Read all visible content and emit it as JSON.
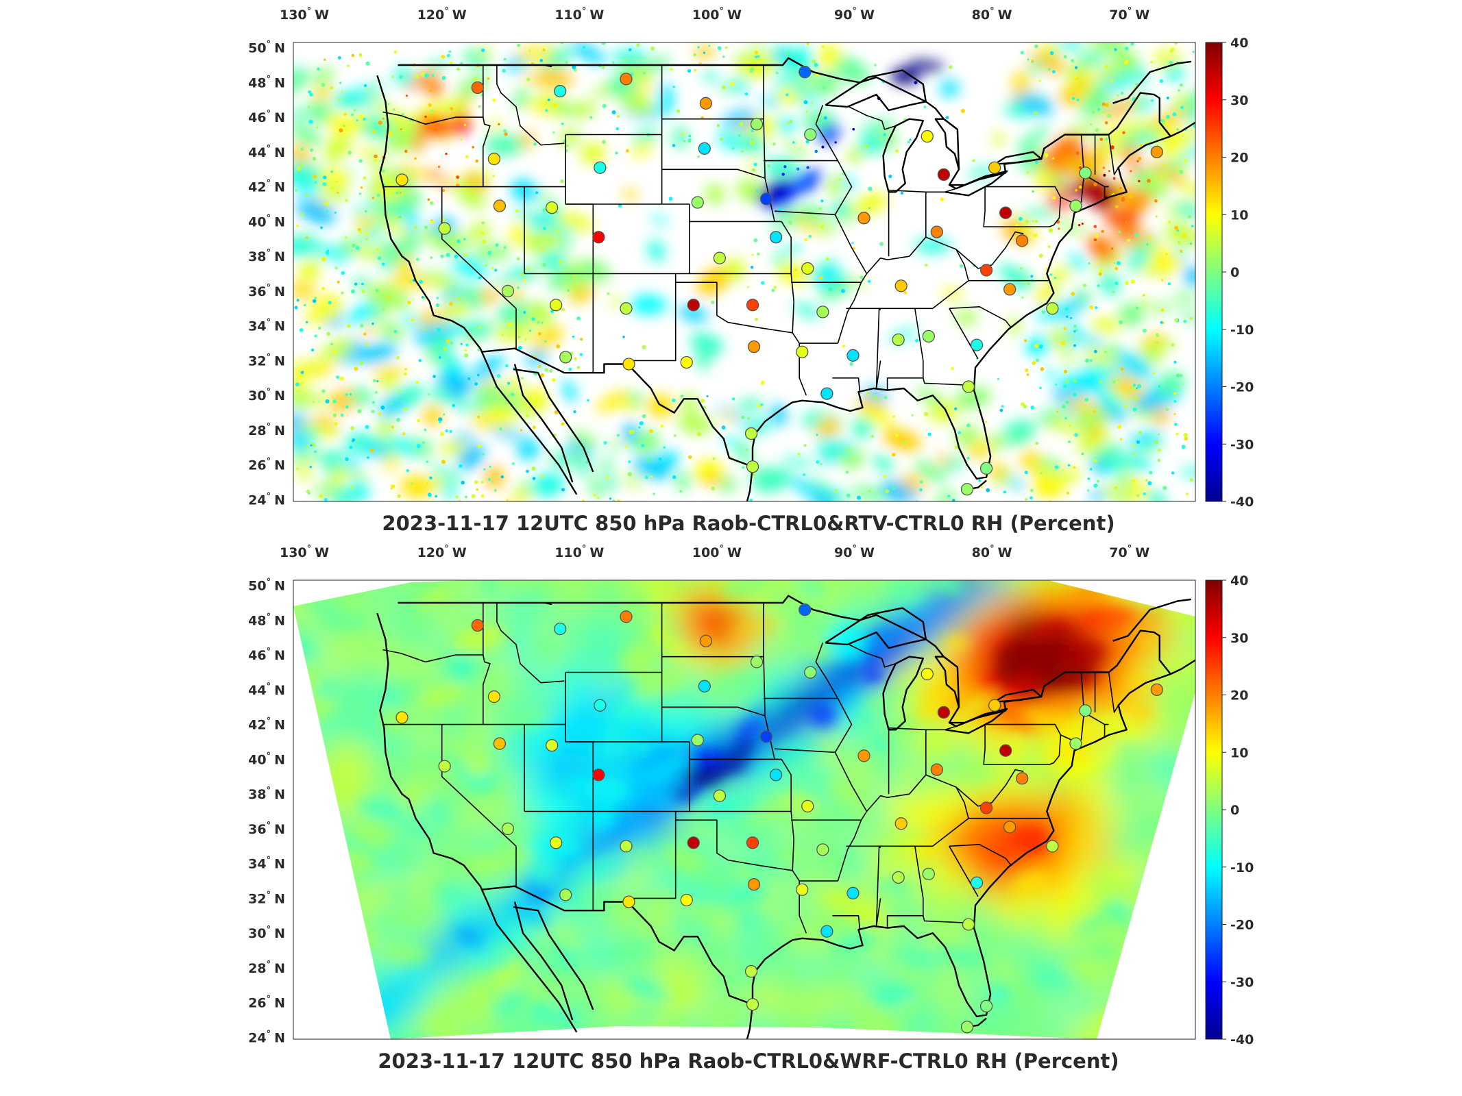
{
  "colors": {
    "low": "#00008f",
    "mid": "#7fff7f",
    "high": "#800000",
    "border": "#000000",
    "station_outline": "#555555"
  },
  "colorbar": {
    "ticks": [
      40,
      30,
      20,
      10,
      0,
      -10,
      -20,
      -30,
      -40
    ],
    "min": -40,
    "max": 40
  },
  "axes": {
    "lon_ticks": [
      "130",
      "120",
      "110",
      "100",
      "90",
      "80",
      "70"
    ],
    "lon_suffix": "W",
    "lat_ticks": [
      "50",
      "48",
      "46",
      "44",
      "42",
      "40",
      "38",
      "36",
      "34",
      "32",
      "30",
      "28",
      "26",
      "24"
    ],
    "lat_suffix": "N",
    "degree": "°"
  },
  "panels": [
    {
      "title": "2023-11-17 12UTC 850 hPa Raob-CTRL0&RTV-CTRL0 RH (Percent)",
      "field": "sparse"
    },
    {
      "title": "2023-11-17 12UTC 850 hPa Raob-CTRL0&WRF-CTRL0 RH (Percent)",
      "field": "dense"
    }
  ],
  "chart_data": {
    "type": "scatter",
    "variable": "RH (Percent)",
    "level": "850 hPa",
    "time": "2023-11-17 12UTC",
    "value_range": [
      -40,
      40
    ],
    "stations": [
      {
        "lon": -117.4,
        "lat": 47.7,
        "value": 22
      },
      {
        "lon": -111.4,
        "lat": 47.5,
        "value": -8
      },
      {
        "lon": -106.6,
        "lat": 48.2,
        "value": 20
      },
      {
        "lon": -100.8,
        "lat": 46.8,
        "value": 18
      },
      {
        "lon": -97.1,
        "lat": 45.6,
        "value": 2
      },
      {
        "lon": -93.6,
        "lat": 48.6,
        "value": -22
      },
      {
        "lon": -93.2,
        "lat": 45.0,
        "value": 1
      },
      {
        "lon": -84.7,
        "lat": 44.9,
        "value": 10
      },
      {
        "lon": -83.5,
        "lat": 42.7,
        "value": 35
      },
      {
        "lon": -79.8,
        "lat": 43.1,
        "value": 14
      },
      {
        "lon": -73.2,
        "lat": 42.8,
        "value": 0
      },
      {
        "lon": -68.0,
        "lat": 44.0,
        "value": 18
      },
      {
        "lon": -116.2,
        "lat": 43.6,
        "value": 12
      },
      {
        "lon": -122.9,
        "lat": 42.4,
        "value": 12
      },
      {
        "lon": -108.5,
        "lat": 43.1,
        "value": -8
      },
      {
        "lon": -100.9,
        "lat": 44.2,
        "value": -12
      },
      {
        "lon": -115.8,
        "lat": 40.9,
        "value": 15
      },
      {
        "lon": -112.0,
        "lat": 40.8,
        "value": 7
      },
      {
        "lon": -101.4,
        "lat": 41.1,
        "value": 2
      },
      {
        "lon": -96.4,
        "lat": 41.3,
        "value": -25
      },
      {
        "lon": -89.3,
        "lat": 40.2,
        "value": 18
      },
      {
        "lon": -84.0,
        "lat": 39.4,
        "value": 20
      },
      {
        "lon": -79.0,
        "lat": 40.5,
        "value": 35
      },
      {
        "lon": -73.9,
        "lat": 40.9,
        "value": 2
      },
      {
        "lon": -119.8,
        "lat": 39.6,
        "value": 5
      },
      {
        "lon": -108.6,
        "lat": 39.1,
        "value": 30
      },
      {
        "lon": -95.7,
        "lat": 39.1,
        "value": -12
      },
      {
        "lon": -99.8,
        "lat": 37.9,
        "value": 5
      },
      {
        "lon": -93.4,
        "lat": 37.3,
        "value": 8
      },
      {
        "lon": -86.6,
        "lat": 36.3,
        "value": 14
      },
      {
        "lon": -80.4,
        "lat": 37.2,
        "value": 25
      },
      {
        "lon": -77.8,
        "lat": 38.9,
        "value": 20
      },
      {
        "lon": -78.7,
        "lat": 36.1,
        "value": 18
      },
      {
        "lon": -115.2,
        "lat": 36.0,
        "value": 3
      },
      {
        "lon": -111.7,
        "lat": 35.2,
        "value": 8
      },
      {
        "lon": -106.6,
        "lat": 35.0,
        "value": 5
      },
      {
        "lon": -101.7,
        "lat": 35.2,
        "value": 35
      },
      {
        "lon": -97.4,
        "lat": 35.2,
        "value": 25
      },
      {
        "lon": -92.3,
        "lat": 34.8,
        "value": 3
      },
      {
        "lon": -86.8,
        "lat": 33.2,
        "value": 4
      },
      {
        "lon": -84.6,
        "lat": 33.4,
        "value": 2
      },
      {
        "lon": -81.1,
        "lat": 32.9,
        "value": -8
      },
      {
        "lon": -75.6,
        "lat": 35.0,
        "value": 5
      },
      {
        "lon": -111.0,
        "lat": 32.2,
        "value": 3
      },
      {
        "lon": -106.4,
        "lat": 31.8,
        "value": 12
      },
      {
        "lon": -102.2,
        "lat": 31.9,
        "value": 10
      },
      {
        "lon": -97.3,
        "lat": 32.8,
        "value": 18
      },
      {
        "lon": -93.8,
        "lat": 32.5,
        "value": 8
      },
      {
        "lon": -90.1,
        "lat": 32.3,
        "value": -12
      },
      {
        "lon": -92.0,
        "lat": 30.1,
        "value": -12
      },
      {
        "lon": -81.7,
        "lat": 30.5,
        "value": 5
      },
      {
        "lon": -97.5,
        "lat": 27.8,
        "value": 5
      },
      {
        "lon": -97.4,
        "lat": 25.9,
        "value": 5
      },
      {
        "lon": -81.8,
        "lat": 24.6,
        "value": 2
      },
      {
        "lon": -80.4,
        "lat": 25.8,
        "value": 0
      }
    ]
  }
}
